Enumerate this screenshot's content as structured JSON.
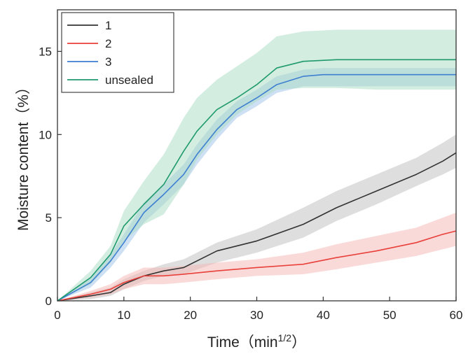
{
  "chart_data": {
    "type": "line",
    "title": "",
    "xlabel": "Time（min",
    "xlabel_sup": "1/2",
    "xlabel_close": "）",
    "ylabel": "Moisture content（%）",
    "xlim": [
      0,
      60
    ],
    "ylim": [
      0,
      17.5
    ],
    "x_ticks": [
      0,
      10,
      20,
      30,
      40,
      50,
      60
    ],
    "y_ticks": [
      0,
      5,
      10,
      15
    ],
    "grid": false,
    "legend_position": "top-left",
    "series": [
      {
        "name": "1",
        "color": "#333333",
        "band_color": "#bdbdbd",
        "x": [
          0,
          5,
          8,
          10,
          13,
          16,
          19,
          24,
          30,
          37,
          42,
          48,
          54,
          58,
          60
        ],
        "y": [
          0,
          0.3,
          0.5,
          1.0,
          1.5,
          1.8,
          2.0,
          3.0,
          3.6,
          4.6,
          5.6,
          6.6,
          7.6,
          8.4,
          8.9
        ],
        "lower": [
          0,
          0.1,
          0.3,
          0.7,
          1.2,
          1.5,
          1.6,
          2.3,
          2.9,
          3.8,
          4.8,
          5.8,
          6.9,
          7.6,
          8.0
        ],
        "upper": [
          0,
          0.5,
          0.8,
          1.3,
          1.8,
          2.2,
          2.5,
          3.5,
          4.3,
          5.6,
          6.6,
          7.6,
          8.6,
          9.5,
          10.0
        ]
      },
      {
        "name": "2",
        "color": "#e8403a",
        "band_color": "#f6b6b2",
        "x": [
          0,
          5,
          8,
          10,
          13,
          16,
          19,
          24,
          30,
          37,
          42,
          48,
          54,
          58,
          60
        ],
        "y": [
          0,
          0.4,
          0.7,
          1.1,
          1.5,
          1.5,
          1.6,
          1.8,
          2.0,
          2.2,
          2.6,
          3.0,
          3.5,
          4.0,
          4.2
        ],
        "lower": [
          0,
          0.2,
          0.4,
          0.7,
          1.0,
          1.0,
          1.1,
          1.3,
          1.5,
          1.6,
          1.9,
          2.3,
          2.7,
          3.1,
          3.3
        ],
        "upper": [
          0,
          0.6,
          1.0,
          1.5,
          2.0,
          2.0,
          2.1,
          2.3,
          2.5,
          2.9,
          3.4,
          3.9,
          4.4,
          5.0,
          5.3
        ]
      },
      {
        "name": "3",
        "color": "#3e7fd0",
        "band_color": "#9ec2e8",
        "x": [
          0,
          5,
          8,
          10,
          13,
          16,
          19,
          21,
          24,
          27,
          30,
          33,
          37,
          40,
          45,
          50,
          55,
          60
        ],
        "y": [
          0,
          1.1,
          2.4,
          3.5,
          5.3,
          6.4,
          7.6,
          8.8,
          10.3,
          11.5,
          12.2,
          13.0,
          13.5,
          13.6,
          13.6,
          13.6,
          13.6,
          13.6
        ],
        "lower": [
          0,
          0.8,
          2.0,
          3.0,
          4.7,
          5.8,
          7.0,
          8.2,
          9.7,
          11.0,
          11.7,
          12.5,
          12.9,
          12.9,
          12.9,
          12.9,
          12.9,
          12.9
        ],
        "upper": [
          0,
          1.4,
          2.8,
          4.0,
          5.9,
          7.0,
          8.2,
          9.4,
          10.9,
          12.0,
          12.7,
          13.5,
          13.9,
          14.0,
          14.0,
          14.0,
          14.0,
          14.0
        ]
      },
      {
        "name": "unsealed",
        "color": "#1f9a6e",
        "band_color": "#a8dcc4",
        "x": [
          0,
          5,
          8,
          10,
          13,
          16,
          19,
          21,
          24,
          27,
          30,
          33,
          37,
          42,
          48,
          54,
          60
        ],
        "y": [
          0,
          1.4,
          2.8,
          4.5,
          5.8,
          7.0,
          9.0,
          10.2,
          11.5,
          12.2,
          13.0,
          14.0,
          14.4,
          14.5,
          14.5,
          14.5,
          14.5
        ],
        "lower": [
          0,
          1.0,
          2.3,
          3.6,
          4.6,
          5.2,
          7.0,
          8.5,
          10.0,
          11.2,
          12.0,
          12.7,
          12.8,
          12.8,
          12.7,
          12.7,
          12.7
        ],
        "upper": [
          0,
          1.8,
          3.3,
          5.4,
          7.2,
          8.8,
          11.0,
          12.2,
          13.3,
          14.1,
          14.9,
          15.9,
          16.2,
          16.3,
          16.3,
          16.3,
          16.3
        ]
      }
    ]
  }
}
